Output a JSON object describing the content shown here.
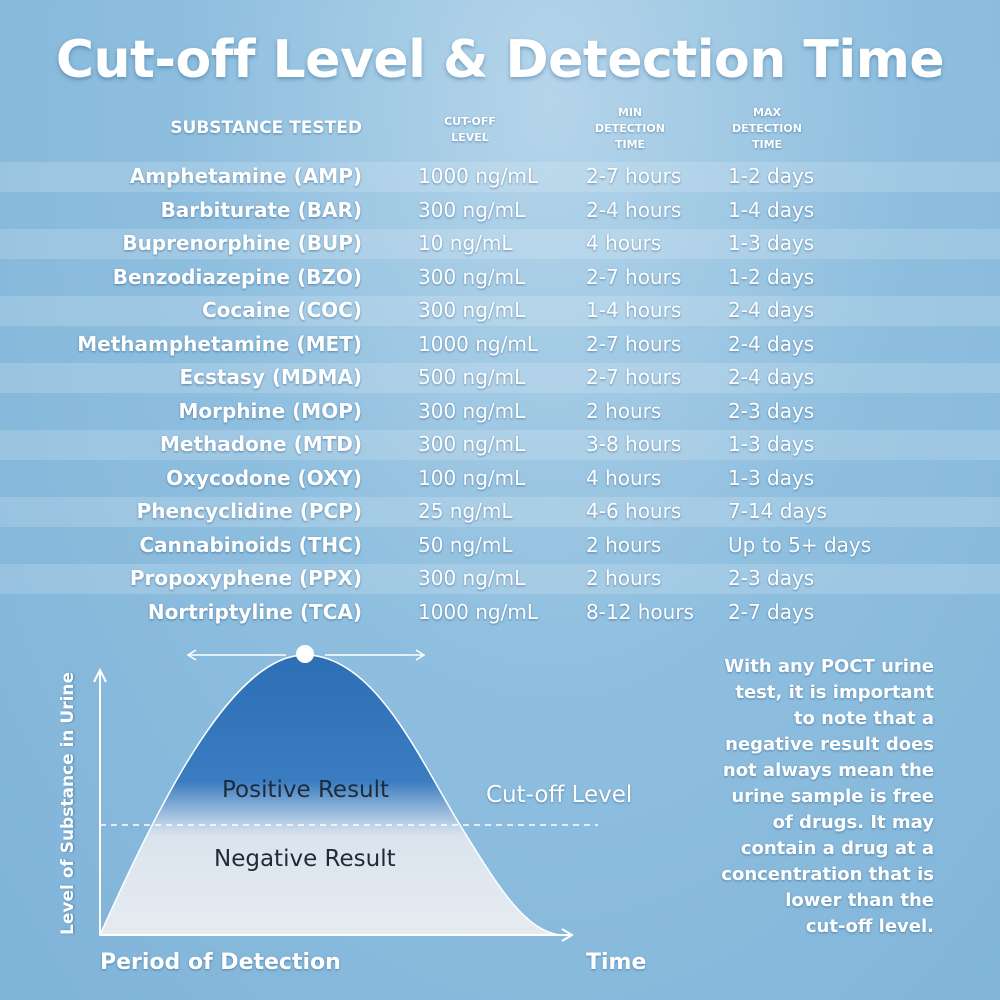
{
  "title": "Cut-off Level & Detection Time",
  "table": {
    "headers": {
      "substance": "SUBSTANCE TESTED",
      "cutoff": [
        "CUT-OFF",
        "LEVEL"
      ],
      "min": [
        "MIN",
        "DETECTION",
        "TIME"
      ],
      "max": [
        "MAX",
        "DETECTION",
        "TIME"
      ]
    },
    "rows": [
      {
        "name": "Amphetamine (AMP)",
        "cutoff": "1000 ng/mL",
        "min": "2-7 hours",
        "max": "1-2 days"
      },
      {
        "name": "Barbiturate (BAR)",
        "cutoff": "300 ng/mL",
        "min": "2-4 hours",
        "max": "1-4 days"
      },
      {
        "name": "Buprenorphine (BUP)",
        "cutoff": "10 ng/mL",
        "min": "4 hours",
        "max": "1-3 days"
      },
      {
        "name": "Benzodiazepine (BZO)",
        "cutoff": "300 ng/mL",
        "min": "2-7 hours",
        "max": "1-2 days"
      },
      {
        "name": "Cocaine (COC)",
        "cutoff": "300 ng/mL",
        "min": "1-4 hours",
        "max": "2-4 days"
      },
      {
        "name": "Methamphetamine (MET)",
        "cutoff": "1000 ng/mL",
        "min": "2-7 hours",
        "max": "2-4 days"
      },
      {
        "name": "Ecstasy (MDMA)",
        "cutoff": "500 ng/mL",
        "min": "2-7 hours",
        "max": "2-4 days"
      },
      {
        "name": "Morphine (MOP)",
        "cutoff": "300 ng/mL",
        "min": "2 hours",
        "max": "2-3 days"
      },
      {
        "name": "Methadone (MTD)",
        "cutoff": "300 ng/mL",
        "min": "3-8 hours",
        "max": "1-3 days"
      },
      {
        "name": "Oxycodone (OXY)",
        "cutoff": "100 ng/mL",
        "min": "4 hours",
        "max": "1-3 days"
      },
      {
        "name": "Phencyclidine (PCP)",
        "cutoff": "25 ng/mL",
        "min": "4-6 hours",
        "max": "7-14 days"
      },
      {
        "name": "Cannabinoids (THC)",
        "cutoff": "50 ng/mL",
        "min": "2 hours",
        "max": "Up to 5+ days"
      },
      {
        "name": "Propoxyphene (PPX)",
        "cutoff": "300 ng/mL",
        "min": "2 hours",
        "max": "2-3 days"
      },
      {
        "name": "Nortriptyline (TCA)",
        "cutoff": "1000 ng/mL",
        "min": "8-12 hours",
        "max": "2-7 days"
      }
    ]
  },
  "diagram": {
    "y_label": "Level of Substance in Urine",
    "x_label": "Period of Detection",
    "x_end_label": "Time",
    "cutoff_label": "Cut-off Level",
    "positive_label": "Positive Result",
    "negative_label": "Negative Result",
    "colors": {
      "positive": "#2f74b8",
      "negative": "#e0e7ee"
    }
  },
  "note": [
    "With any POCT urine",
    "test, it is important",
    "to note that a",
    "negative result does",
    "not always mean the",
    "urine sample is free",
    "of drugs. It may",
    "contain a drug at a",
    "concentration that is",
    "lower than the",
    "cut-off level."
  ]
}
